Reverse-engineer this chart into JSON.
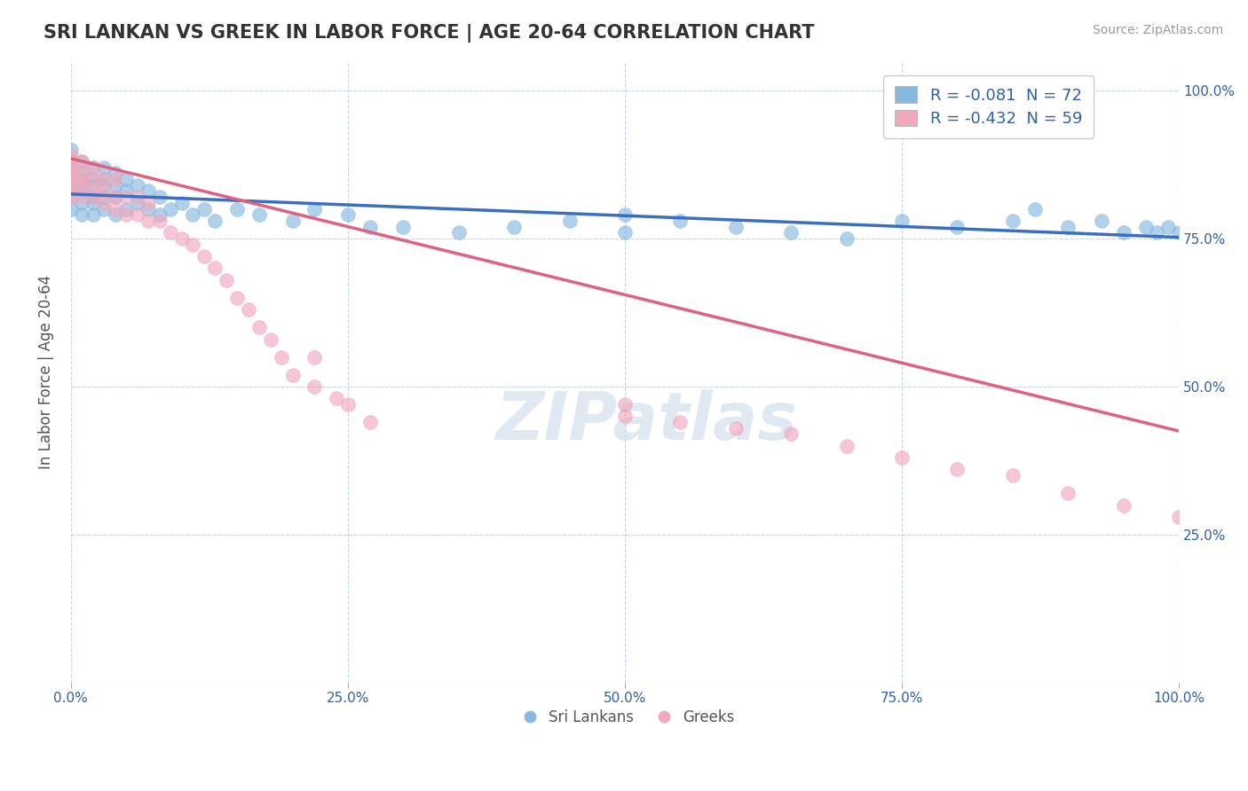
{
  "title": "SRI LANKAN VS GREEK IN LABOR FORCE | AGE 20-64 CORRELATION CHART",
  "source": "Source: ZipAtlas.com",
  "ylabel": "In Labor Force | Age 20-64",
  "x_ticks": [
    0.0,
    25.0,
    50.0,
    75.0,
    100.0
  ],
  "x_tick_labels": [
    "0.0%",
    "25.0%",
    "50.0%",
    "75.0%",
    "100.0%"
  ],
  "y_ticks": [
    0.0,
    25.0,
    50.0,
    75.0,
    100.0
  ],
  "y_tick_labels": [
    "",
    "25.0%",
    "50.0%",
    "75.0%",
    "100.0%"
  ],
  "xlim": [
    0,
    100
  ],
  "ylim": [
    0,
    105
  ],
  "blue_color": "#87b9e0",
  "pink_color": "#f0a8bc",
  "blue_line_color": "#3a6fbf",
  "pink_line_color": "#e06080",
  "legend_R_blue": "R = -0.081",
  "legend_N_blue": "N = 72",
  "legend_R_pink": "R = -0.432",
  "legend_N_pink": "N = 59",
  "watermark": "ZIPatlas",
  "watermark_color": "#c8d8e8",
  "blue_intercept": 82.5,
  "blue_slope": -0.073,
  "pink_intercept": 88.5,
  "pink_slope": -0.46,
  "blue_scatter_x": [
    0,
    0,
    0,
    0,
    0,
    0,
    0,
    0,
    0,
    1,
    1,
    1,
    1,
    1,
    1,
    1,
    2,
    2,
    2,
    2,
    2,
    2,
    3,
    3,
    3,
    3,
    3,
    4,
    4,
    4,
    4,
    5,
    5,
    5,
    6,
    6,
    7,
    7,
    8,
    8,
    9,
    10,
    11,
    12,
    13,
    15,
    17,
    20,
    22,
    25,
    27,
    30,
    35,
    40,
    45,
    50,
    50,
    55,
    60,
    65,
    70,
    75,
    80,
    85,
    87,
    90,
    93,
    95,
    97,
    98,
    99,
    100
  ],
  "blue_scatter_y": [
    80,
    82,
    83,
    84,
    85,
    86,
    87,
    88,
    90,
    79,
    81,
    83,
    84,
    85,
    86,
    88,
    79,
    81,
    82,
    84,
    85,
    87,
    80,
    82,
    84,
    85,
    87,
    79,
    82,
    84,
    86,
    80,
    83,
    85,
    81,
    84,
    80,
    83,
    79,
    82,
    80,
    81,
    79,
    80,
    78,
    80,
    79,
    78,
    80,
    79,
    77,
    77,
    76,
    77,
    78,
    79,
    76,
    78,
    77,
    76,
    75,
    78,
    77,
    78,
    80,
    77,
    78,
    76,
    77,
    76,
    77,
    76
  ],
  "pink_scatter_x": [
    0,
    0,
    0,
    0,
    0,
    0,
    0,
    0,
    1,
    1,
    1,
    1,
    1,
    2,
    2,
    2,
    2,
    3,
    3,
    3,
    4,
    4,
    4,
    5,
    5,
    6,
    6,
    7,
    7,
    8,
    9,
    10,
    11,
    12,
    13,
    14,
    15,
    16,
    17,
    18,
    19,
    20,
    22,
    22,
    24,
    25,
    27,
    50,
    50,
    55,
    60,
    65,
    70,
    75,
    80,
    85,
    90,
    95,
    100
  ],
  "pink_scatter_y": [
    82,
    83,
    84,
    85,
    86,
    87,
    88,
    89,
    82,
    84,
    85,
    86,
    88,
    82,
    83,
    85,
    87,
    81,
    83,
    85,
    80,
    82,
    85,
    79,
    82,
    79,
    82,
    78,
    81,
    78,
    76,
    75,
    74,
    72,
    70,
    68,
    65,
    63,
    60,
    58,
    55,
    52,
    50,
    55,
    48,
    47,
    44,
    47,
    45,
    44,
    43,
    42,
    40,
    38,
    36,
    35,
    32,
    30,
    28
  ]
}
